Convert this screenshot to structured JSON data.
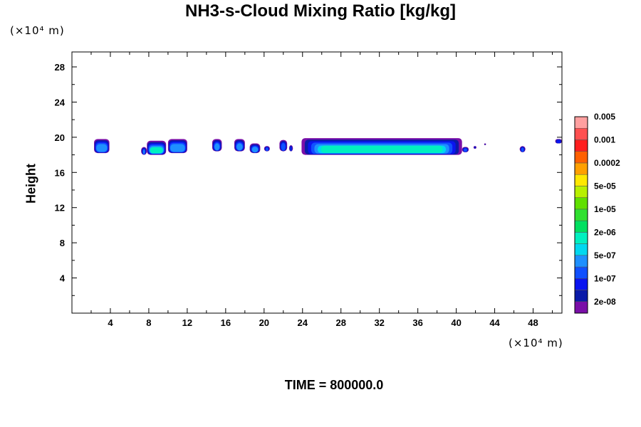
{
  "chart_data": {
    "type": "heatmap",
    "title": "NH3-s-Cloud Mixing Ratio [kg/kg]",
    "ylabel": "Height",
    "y_unit_label": "(×10⁴ m)",
    "x_unit_label": "(×10⁴ m)",
    "footer": "TIME = 800000.0",
    "xlim": [
      0,
      51
    ],
    "ylim": [
      0,
      29.7
    ],
    "x_ticks": [
      4,
      8,
      12,
      16,
      20,
      24,
      28,
      32,
      36,
      40,
      44,
      48
    ],
    "x_tick_labels": [
      "4",
      "8",
      "12",
      "16",
      "20",
      "24",
      "28",
      "32",
      "36",
      "40",
      "44",
      "48"
    ],
    "y_ticks": [
      4,
      8,
      12,
      16,
      20,
      24,
      28
    ],
    "y_tick_labels": [
      "4",
      "8",
      "12",
      "16",
      "20",
      "24",
      "28"
    ],
    "colorbar": {
      "colors": [
        "#7a0fa8",
        "#0a1aa8",
        "#0a14f0",
        "#1050ff",
        "#1e90ff",
        "#00d8f0",
        "#00f0c0",
        "#00e060",
        "#30e030",
        "#60e000",
        "#b8f000",
        "#ffe800",
        "#ffa000",
        "#ff6000",
        "#ff1e1e",
        "#ff5050",
        "#ffa0a0"
      ],
      "labels": [
        "2e-08",
        "1e-07",
        "5e-07",
        "2e-06",
        "1e-05",
        "5e-05",
        "0.0002",
        "0.001",
        "0.005"
      ]
    },
    "cloud_regions": [
      {
        "x": [
          2.3,
          3.9
        ],
        "y": [
          18.2,
          19.8
        ],
        "max_level": 5
      },
      {
        "x": [
          7.2,
          7.8
        ],
        "y": [
          18.0,
          18.9
        ],
        "max_level": 5
      },
      {
        "x": [
          7.8,
          9.8
        ],
        "y": [
          18.0,
          19.6
        ],
        "max_level": 7
      },
      {
        "x": [
          10.0,
          12.0
        ],
        "y": [
          18.2,
          19.8
        ],
        "max_level": 5
      },
      {
        "x": [
          14.6,
          15.6
        ],
        "y": [
          18.4,
          19.8
        ],
        "max_level": 5
      },
      {
        "x": [
          16.9,
          18.0
        ],
        "y": [
          18.4,
          19.8
        ],
        "max_level": 5
      },
      {
        "x": [
          18.5,
          19.6
        ],
        "y": [
          18.2,
          19.3
        ],
        "max_level": 5
      },
      {
        "x": [
          20.0,
          20.6
        ],
        "y": [
          18.4,
          19.0
        ],
        "max_level": 4
      },
      {
        "x": [
          21.6,
          22.4
        ],
        "y": [
          18.4,
          19.7
        ],
        "max_level": 4
      },
      {
        "x": [
          22.6,
          23.0
        ],
        "y": [
          18.4,
          19.1
        ],
        "max_level": 4
      },
      {
        "x": [
          23.9,
          40.6
        ],
        "y": [
          18.0,
          19.9
        ],
        "max_level": 7
      },
      {
        "x": [
          40.6,
          41.3
        ],
        "y": [
          18.3,
          18.9
        ],
        "max_level": 4
      },
      {
        "x": [
          41.8,
          42.1
        ],
        "y": [
          18.7,
          19.0
        ],
        "max_level": 3
      },
      {
        "x": [
          42.9,
          43.1
        ],
        "y": [
          19.1,
          19.3
        ],
        "max_level": 2
      },
      {
        "x": [
          46.6,
          47.2
        ],
        "y": [
          18.3,
          19.0
        ],
        "max_level": 4
      },
      {
        "x": [
          50.3,
          51.0
        ],
        "y": [
          19.3,
          19.8
        ],
        "max_level": 3
      }
    ]
  }
}
